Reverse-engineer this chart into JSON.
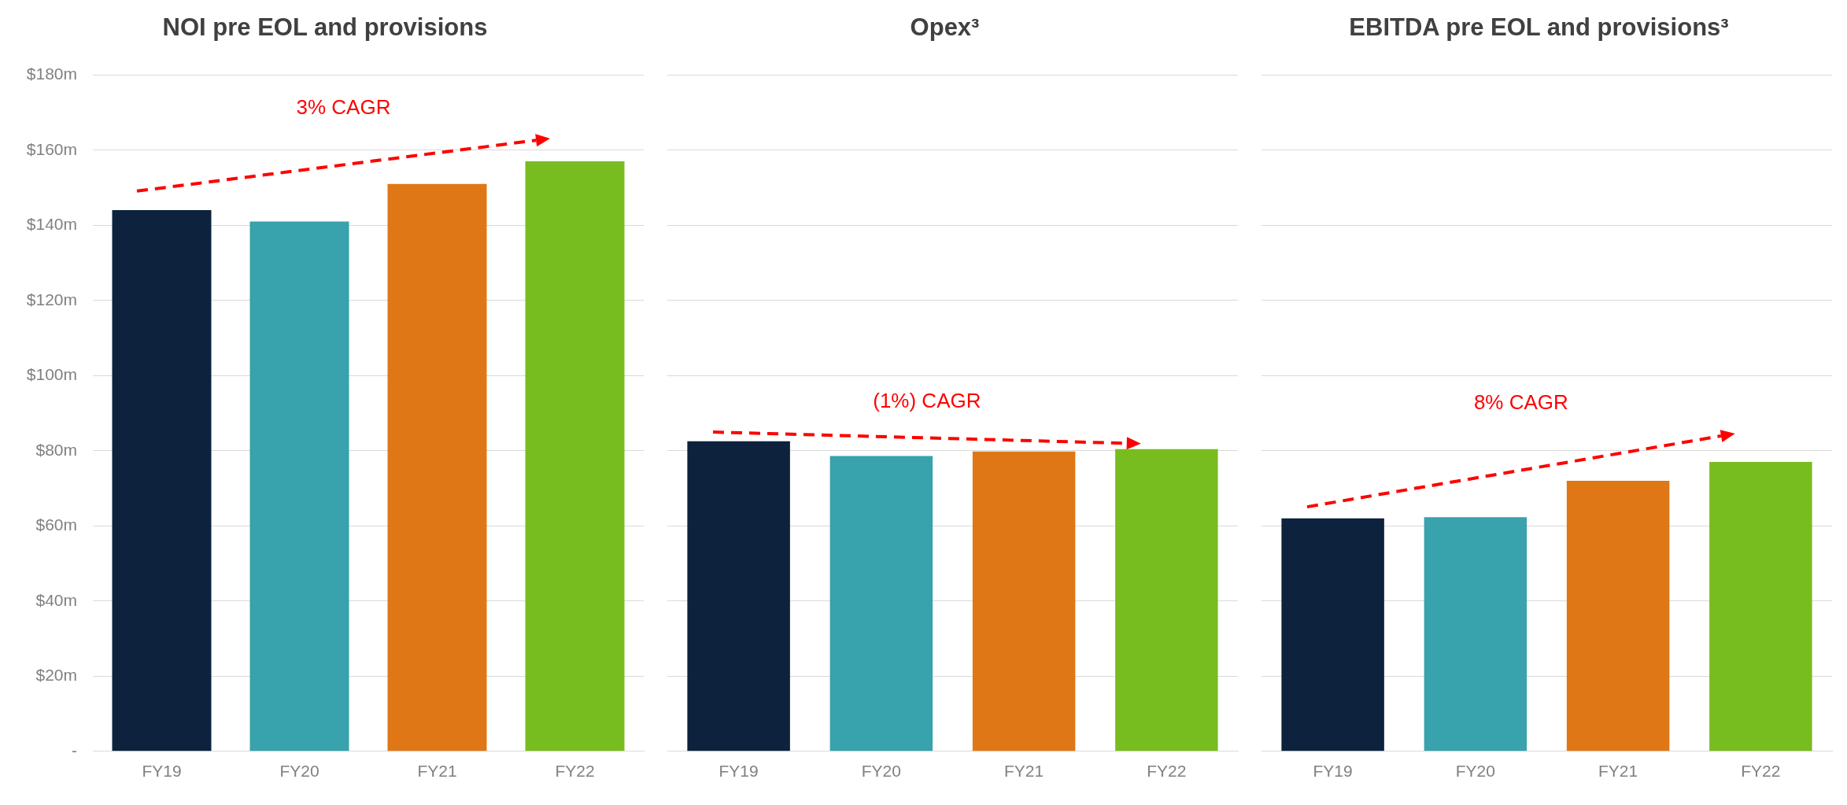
{
  "chart_data": [
    {
      "type": "bar",
      "title": "NOI pre EOL and provisions",
      "categories": [
        "FY19",
        "FY20",
        "FY21",
        "FY22"
      ],
      "values": [
        144,
        141,
        151,
        157
      ],
      "colors": [
        "#0d223d",
        "#38a2ad",
        "#df7716",
        "#78bd1f"
      ],
      "ylim": [
        0,
        180
      ],
      "yticks": [
        {
          "value": 0,
          "label": "-"
        },
        {
          "value": 20,
          "label": "$20m"
        },
        {
          "value": 40,
          "label": "$40m"
        },
        {
          "value": 60,
          "label": "$60m"
        },
        {
          "value": 80,
          "label": "$80m"
        },
        {
          "value": 100,
          "label": "$100m"
        },
        {
          "value": 120,
          "label": "$120m"
        },
        {
          "value": 140,
          "label": "$140m"
        },
        {
          "value": 160,
          "label": "$160m"
        },
        {
          "value": 180,
          "label": "$180m"
        }
      ],
      "grid": "y",
      "annotations": [
        "3% CAGR"
      ]
    },
    {
      "type": "bar",
      "title": "Opex³",
      "categories": [
        "FY19",
        "FY20",
        "FY21",
        "FY22"
      ],
      "values": [
        82.5,
        78.6,
        79.8,
        80.4
      ],
      "colors": [
        "#0d223d",
        "#38a2ad",
        "#df7716",
        "#78bd1f"
      ],
      "ylim": [
        0,
        180
      ],
      "yticks": [
        0,
        20,
        40,
        60,
        80,
        100,
        120,
        140,
        160,
        180
      ],
      "grid": "y",
      "tick_labels": "x",
      "annotations": [
        "(1%) CAGR"
      ]
    },
    {
      "type": "bar",
      "title": "EBITDA pre EOL and provisions³",
      "categories": [
        "FY19",
        "FY20",
        "FY21",
        "FY22"
      ],
      "values": [
        62,
        62.3,
        72,
        77
      ],
      "colors": [
        "#0d223d",
        "#38a2ad",
        "#df7716",
        "#78bd1f"
      ],
      "ylim": [
        0,
        180
      ],
      "yticks": [
        0,
        20,
        40,
        60,
        80,
        100,
        120,
        140,
        160,
        180
      ],
      "grid": "y",
      "tick_labels": "x",
      "annotations": [
        "8% CAGR"
      ]
    }
  ]
}
